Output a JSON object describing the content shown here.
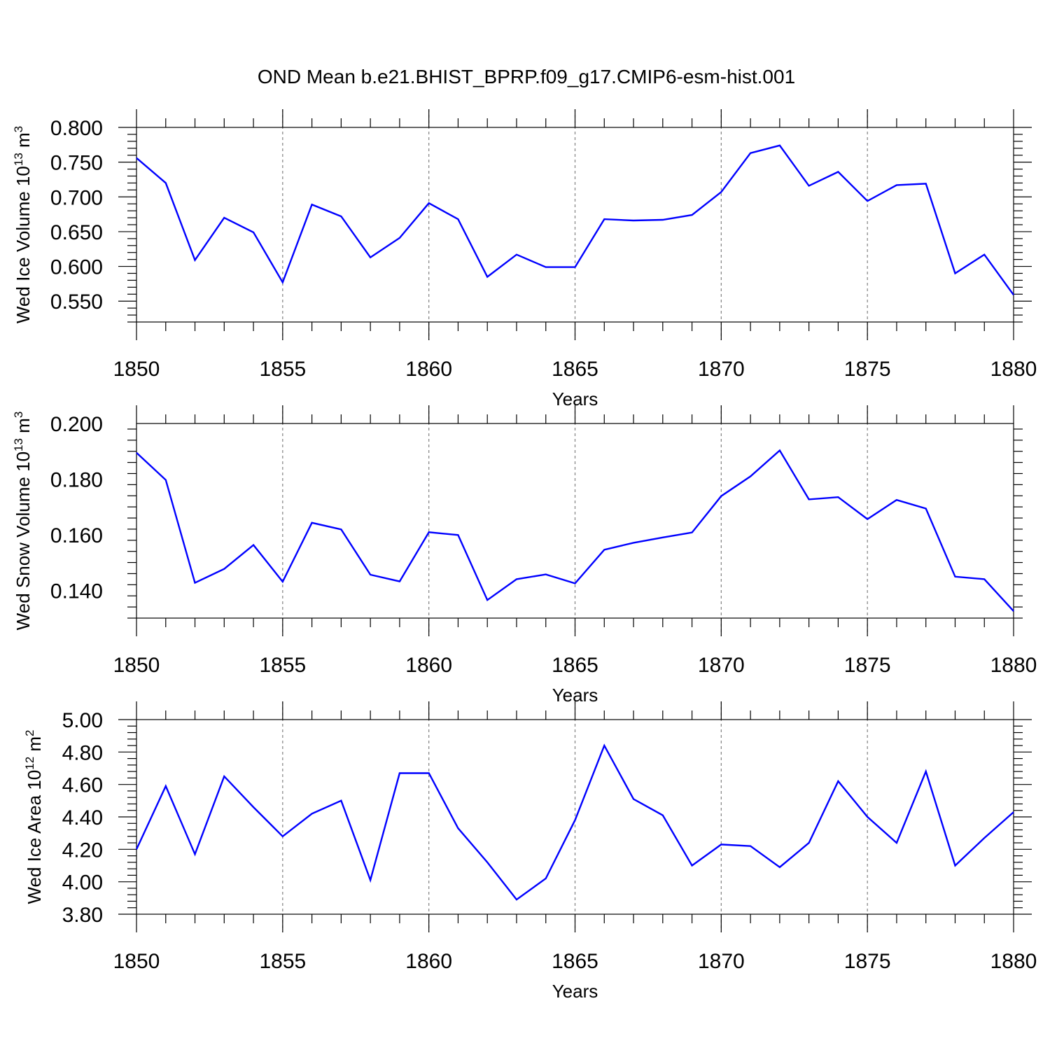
{
  "title": "OND Mean b.e21.BHIST_BPRP.f09_g17.CMIP6-esm-hist.001",
  "line_color": "#0000ff",
  "chart_data": [
    {
      "type": "line",
      "ylabel": {
        "main": "Wed Ice Volume 10",
        "exp": "13",
        "unit": " m",
        "unit_exp": "3"
      },
      "xlabel": "Years",
      "xlim": [
        1850,
        1880
      ],
      "ylim": [
        0.52,
        0.8
      ],
      "yticks": [
        0.55,
        0.6,
        0.65,
        0.7,
        0.75,
        0.8
      ],
      "ytick_labels": [
        "0.550",
        "0.600",
        "0.650",
        "0.700",
        "0.750",
        "0.800"
      ],
      "xticks": [
        1850,
        1855,
        1860,
        1865,
        1870,
        1875,
        1880
      ],
      "xtick_labels": [
        "1850",
        "1855",
        "1860",
        "1865",
        "1870",
        "1875",
        "1880"
      ],
      "x": [
        1850,
        1851,
        1852,
        1853,
        1854,
        1855,
        1856,
        1857,
        1858,
        1859,
        1860,
        1861,
        1862,
        1863,
        1864,
        1865,
        1866,
        1867,
        1868,
        1869,
        1870,
        1871,
        1872,
        1873,
        1874,
        1875,
        1876,
        1877,
        1878,
        1879,
        1880
      ],
      "y": [
        0.756,
        0.72,
        0.609,
        0.67,
        0.649,
        0.577,
        0.689,
        0.672,
        0.613,
        0.641,
        0.691,
        0.668,
        0.585,
        0.617,
        0.599,
        0.599,
        0.668,
        0.666,
        0.667,
        0.674,
        0.707,
        0.763,
        0.774,
        0.716,
        0.736,
        0.694,
        0.717,
        0.719,
        0.59,
        0.617,
        0.559
      ]
    },
    {
      "type": "line",
      "ylabel": {
        "main": "Wed Snow Volume 10",
        "exp": "13",
        "unit": " m",
        "unit_exp": "3"
      },
      "xlabel": "Years",
      "xlim": [
        1850,
        1880
      ],
      "ylim": [
        0.13,
        0.2
      ],
      "yticks": [
        0.14,
        0.16,
        0.18,
        0.2
      ],
      "ytick_labels": [
        "0.140",
        "0.160",
        "0.180",
        "0.200"
      ],
      "xticks": [
        1850,
        1855,
        1860,
        1865,
        1870,
        1875,
        1880
      ],
      "xtick_labels": [
        "1850",
        "1855",
        "1860",
        "1865",
        "1870",
        "1875",
        "1880"
      ],
      "x": [
        1850,
        1851,
        1852,
        1853,
        1854,
        1855,
        1856,
        1857,
        1858,
        1859,
        1860,
        1861,
        1862,
        1863,
        1864,
        1865,
        1866,
        1867,
        1868,
        1869,
        1870,
        1871,
        1872,
        1873,
        1874,
        1875,
        1876,
        1877,
        1878,
        1879,
        1880
      ],
      "y": [
        0.1895,
        0.1797,
        0.1427,
        0.1477,
        0.1563,
        0.1431,
        0.1643,
        0.1619,
        0.1456,
        0.1432,
        0.1609,
        0.1599,
        0.1365,
        0.144,
        0.1457,
        0.1425,
        0.1546,
        0.1571,
        0.159,
        0.1608,
        0.1739,
        0.181,
        0.1903,
        0.1727,
        0.1735,
        0.1656,
        0.1725,
        0.1694,
        0.1449,
        0.144,
        0.1325
      ]
    },
    {
      "type": "line",
      "ylabel": {
        "main": "Wed Ice Area 10",
        "exp": "12",
        "unit": " m",
        "unit_exp": "2"
      },
      "xlabel": "Years",
      "xlim": [
        1850,
        1880
      ],
      "ylim": [
        3.8,
        5.0
      ],
      "yticks": [
        3.8,
        4.0,
        4.2,
        4.4,
        4.6,
        4.8,
        5.0
      ],
      "ytick_labels": [
        "3.80",
        "4.00",
        "4.20",
        "4.40",
        "4.60",
        "4.80",
        "5.00"
      ],
      "xticks": [
        1850,
        1855,
        1860,
        1865,
        1870,
        1875,
        1880
      ],
      "xtick_labels": [
        "1850",
        "1855",
        "1860",
        "1865",
        "1870",
        "1875",
        "1880"
      ],
      "x": [
        1850,
        1851,
        1852,
        1853,
        1854,
        1855,
        1856,
        1857,
        1858,
        1859,
        1860,
        1861,
        1862,
        1863,
        1864,
        1865,
        1866,
        1867,
        1868,
        1869,
        1870,
        1871,
        1872,
        1873,
        1874,
        1875,
        1876,
        1877,
        1878,
        1879,
        1880
      ],
      "y": [
        4.2,
        4.59,
        4.17,
        4.65,
        4.46,
        4.28,
        4.42,
        4.5,
        4.01,
        4.67,
        4.67,
        4.33,
        4.12,
        3.89,
        4.02,
        4.38,
        4.84,
        4.51,
        4.41,
        4.1,
        4.23,
        4.22,
        4.09,
        4.24,
        4.62,
        4.4,
        4.24,
        4.68,
        4.1,
        4.27,
        4.43
      ]
    }
  ]
}
